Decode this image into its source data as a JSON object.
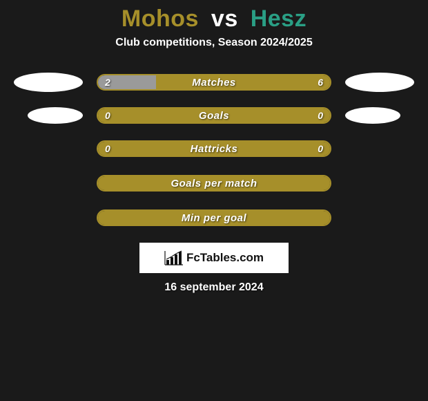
{
  "title": {
    "player1": "Mohos",
    "vs": "vs",
    "player2": "Hesz",
    "player1_color": "#a68f2a",
    "vs_color": "#ffffff",
    "player2_color": "#2a9f85"
  },
  "subtitle": "Club competitions, Season 2024/2025",
  "accent_color": "#a68f2a",
  "background_color": "#1a1a1a",
  "stat_rows": [
    {
      "label": "Matches",
      "left_val": "2",
      "right_val": "6",
      "left_pct": 25,
      "right_pct": 75,
      "left_fill_color": "#9a9a9a",
      "right_fill_color": "#a68f2a",
      "border_color": "#a68f2a",
      "show_badges": true,
      "badge_size": "normal"
    },
    {
      "label": "Goals",
      "left_val": "0",
      "right_val": "0",
      "left_pct": 0,
      "right_pct": 100,
      "left_fill_color": "#a68f2a",
      "right_fill_color": "#a68f2a",
      "border_color": "#a68f2a",
      "show_badges": true,
      "badge_size": "small"
    },
    {
      "label": "Hattricks",
      "left_val": "0",
      "right_val": "0",
      "left_pct": 0,
      "right_pct": 100,
      "left_fill_color": "#a68f2a",
      "right_fill_color": "#a68f2a",
      "border_color": "#a68f2a",
      "show_badges": false
    },
    {
      "label": "Goals per match",
      "left_val": "",
      "right_val": "",
      "left_pct": 0,
      "right_pct": 100,
      "left_fill_color": "#a68f2a",
      "right_fill_color": "#a68f2a",
      "border_color": "#a68f2a",
      "show_badges": false
    },
    {
      "label": "Min per goal",
      "left_val": "",
      "right_val": "",
      "left_pct": 0,
      "right_pct": 100,
      "left_fill_color": "#a68f2a",
      "right_fill_color": "#a68f2a",
      "border_color": "#a68f2a",
      "show_badges": false
    }
  ],
  "logo_text": "FcTables.com",
  "footer_date": "16 september 2024"
}
